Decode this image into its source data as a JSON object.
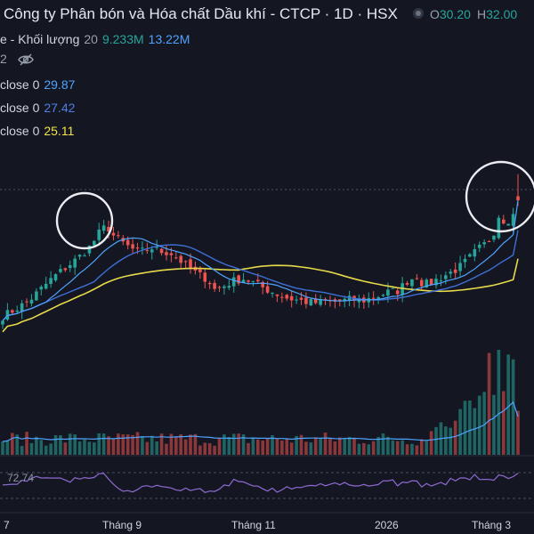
{
  "header": {
    "title": "Công ty Phân bón và Hóa chất Dầu khí - CTCP · 1D · HSX",
    "open_label": "O",
    "open_value": "30.20",
    "high_label": "H",
    "high_value": "32.00"
  },
  "legend": {
    "volume": {
      "label": "e - Khối lượng",
      "length": "20",
      "value1": "9.233M",
      "value2": "13.22M"
    },
    "row2_prefix": "2",
    "ma_rows": [
      {
        "label": "close 0",
        "value": "29.87"
      },
      {
        "label": "close 0",
        "value": "27.42"
      },
      {
        "label": "close 0",
        "value": "25.11"
      }
    ]
  },
  "rsi": {
    "value": "72.74"
  },
  "x_axis": [
    "7",
    "Tháng 9",
    "Tháng 11",
    "2026",
    "Tháng 3"
  ],
  "colors": {
    "up": "#26a69a",
    "down": "#ef5350",
    "ma_fast": "#4fa3ff",
    "ma_mid": "#3f6fd6",
    "ma_slow": "#e6d94a",
    "rsi": "#8e6ad1",
    "background": "#141722"
  },
  "icons": [
    "eye-off-icon",
    "settings-dot-icon"
  ],
  "chart_data": {
    "type": "candlestick",
    "title": "Công ty Phân bón và Hóa chất Dầu khí - CTCP · 1D · HSX",
    "x_ticks": [
      "7",
      "Tháng 9",
      "Tháng 11",
      "2026",
      "Tháng 3"
    ],
    "last_open": 30.2,
    "last_high": 32.0,
    "close_path": [
      [
        0,
        20.4
      ],
      [
        8,
        21.0
      ],
      [
        16,
        21.6
      ],
      [
        24,
        22.6
      ],
      [
        32,
        23.6
      ],
      [
        40,
        24.4
      ],
      [
        48,
        25.2
      ],
      [
        56,
        26.2
      ],
      [
        62,
        27.4
      ],
      [
        66,
        27.8
      ],
      [
        70,
        27.0
      ],
      [
        78,
        26.2
      ],
      [
        86,
        25.6
      ],
      [
        94,
        26.0
      ],
      [
        100,
        25.7
      ],
      [
        106,
        25.6
      ],
      [
        112,
        25.0
      ],
      [
        118,
        24.3
      ],
      [
        124,
        23.8
      ],
      [
        130,
        23.4
      ],
      [
        134,
        22.6
      ],
      [
        140,
        22.9
      ],
      [
        146,
        23.3
      ],
      [
        152,
        23.5
      ],
      [
        158,
        23.2
      ],
      [
        164,
        22.8
      ],
      [
        172,
        22.3
      ],
      [
        180,
        21.9
      ],
      [
        188,
        21.7
      ],
      [
        196,
        21.5
      ],
      [
        204,
        21.6
      ],
      [
        212,
        21.6
      ],
      [
        220,
        21.8
      ],
      [
        228,
        21.7
      ],
      [
        236,
        22.0
      ],
      [
        244,
        22.4
      ],
      [
        250,
        22.5
      ],
      [
        256,
        23.3
      ],
      [
        262,
        23.7
      ],
      [
        266,
        23.0
      ],
      [
        270,
        23.1
      ],
      [
        276,
        23.5
      ],
      [
        282,
        23.9
      ],
      [
        288,
        24.3
      ],
      [
        294,
        25.0
      ],
      [
        300,
        25.8
      ],
      [
        306,
        26.4
      ],
      [
        310,
        27.0
      ],
      [
        314,
        28.7
      ],
      [
        318,
        28.1
      ],
      [
        322,
        28.5
      ],
      [
        326,
        29.2
      ]
    ],
    "ma_short_last": 29.87,
    "ma_mid_last": 27.42,
    "ma_long_last": 25.11,
    "volume_sma_1": 9.233,
    "volume_sma_2": 13.22,
    "volume_unit": "M",
    "rsi_last": 72.74,
    "highlights": [
      "peak in Tháng 8",
      "peak in Tháng 3"
    ]
  }
}
